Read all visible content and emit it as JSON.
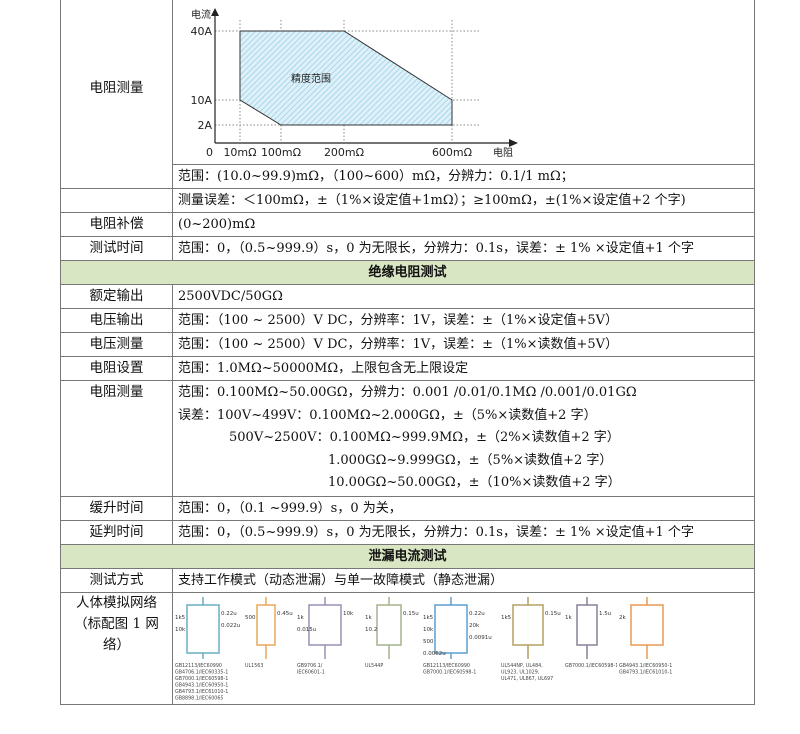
{
  "chart_data": {
    "type": "area",
    "title": "",
    "xlabel": "电阻",
    "ylabel": "电流",
    "origin_label": "0",
    "x_ticks": [
      "10mΩ",
      "100mΩ",
      "200mΩ",
      "600mΩ"
    ],
    "y_ticks": [
      "2A",
      "10A",
      "40A"
    ],
    "region_label": "精度范围",
    "region_polygon": [
      {
        "x": "10mΩ",
        "y": "40A"
      },
      {
        "x": "200mΩ",
        "y": "40A"
      },
      {
        "x": "600mΩ",
        "y": "10A"
      },
      {
        "x": "600mΩ",
        "y": "2A"
      },
      {
        "x": "100mΩ",
        "y": "2A"
      },
      {
        "x": "10mΩ",
        "y": "10A"
      }
    ],
    "grid": true,
    "fill_color": "#a8d8ec"
  },
  "rows": {
    "resistance_measure": {
      "label": "电阻测量",
      "range": "范围：(10.0~99.9)mΩ，（100~600）mΩ，分辨力：0.1/1 mΩ；",
      "error": "测量误差：＜100mΩ，±（1%×设定值+1mΩ）；≥100mΩ，±(1%×设定值+2 个字)"
    },
    "resistance_comp": {
      "label": "电阻补偿",
      "value": "(0~200)mΩ"
    },
    "test_time": {
      "label": "测试时间",
      "value": "范围：0，（0.5~999.9）s，0 为无限长，分辨力：0.1s，误差：± 1% ×设定值+1 个字"
    }
  },
  "insulation": {
    "header": "绝缘电阻测试",
    "rated_output": {
      "label": "额定输出",
      "value": "2500VDC/50GΩ"
    },
    "voltage_output": {
      "label": "电压输出",
      "value": "范围：（100 ~ 2500）V DC，分辨率：1V，误差：±（1%×设定值+5V）"
    },
    "voltage_measure": {
      "label": "电压测量",
      "value": "范围：（100 ~ 2500）V DC，分辨率：1V，误差：±（1%×读数值+5V）"
    },
    "resistance_setting": {
      "label": "电阻设置",
      "value": "范围：1.0MΩ~50000MΩ，上限包含无上限设定"
    },
    "resistance_measure": {
      "label": "电阻测量",
      "lines": [
        "范围：0.100MΩ~50.00GΩ，分辨力：0.001 /0.01/0.1MΩ /0.001/0.01GΩ",
        "误差：100V~499V：0.100MΩ~2.000GΩ，±（5%×读数值+2 字）",
        "500V~2500V：0.100MΩ~999.9MΩ，±（2%×读数值+2 字）",
        "1.000GΩ~9.999GΩ，±（5%×读数值+2 字）",
        "10.00GΩ~50.00GΩ，±（10%×读数值+2 字）"
      ]
    },
    "ramp_time": {
      "label": "缓升时间",
      "value": "范围：0，（0.1 ~999.9）s，0 为关，"
    },
    "judge_delay": {
      "label": "延判时间",
      "value": "范围：0，（0.5~999.9）s，0 为无限长，分辨力：0.1s，误差：± 1% ×设定值+1 个字"
    }
  },
  "leakage": {
    "header": "泄漏电流测试",
    "test_mode": {
      "label": "测试方式",
      "value": "支持工作模式（动态泄漏）与单一故障模式（静态泄漏）"
    },
    "body_network": {
      "label": "人体模拟网络（标配图 1 网络）",
      "networks": [
        {
          "color": "#6aaec2",
          "values": [
            "1k5",
            "0.22u",
            "10k",
            "0.022u"
          ],
          "standards": [
            "GB12113/IEC60990",
            "GB4706.1/IEC60335-1",
            "GB7000.1/IEC60598-1",
            "GB4943.1/IEC60950-1",
            "GB4793.1/IEC61010-1",
            "GB8898.1/IEC60065"
          ]
        },
        {
          "color": "#e8a75a",
          "values": [
            "500",
            "0.45u"
          ],
          "standards": [
            "UL1563"
          ]
        },
        {
          "color": "#9a8fb5",
          "values": [
            "1k",
            "10k",
            "0.015u"
          ],
          "standards": [
            "GB9706.1/",
            "IEC60601-1"
          ]
        },
        {
          "color": "#a3b38a",
          "values": [
            "1k",
            "0.15u",
            "10.2"
          ],
          "standards": [
            "UL544P"
          ]
        },
        {
          "color": "#5aa0d0",
          "values": [
            "1k5",
            "0.22u",
            "10k",
            "20k",
            "500",
            "0.0091u",
            "0.0062u"
          ],
          "standards": [
            "GB12113/IEC60990",
            "GB7000.1/IEC60598-1"
          ]
        },
        {
          "color": "#b3a060",
          "values": [
            "1k5",
            "0.15u"
          ],
          "standards": [
            "UL544NP, UL484,",
            "UL923, UL1029,",
            "UL471, UL867, UL697"
          ]
        },
        {
          "color": "#8a8098",
          "values": [
            "1k",
            "1.5u"
          ],
          "standards": [
            "GB7000.1/IEC60598-1"
          ]
        },
        {
          "color": "#e89a50",
          "values": [
            "2k"
          ],
          "standards": [
            "GB4943.1/IEC60950-1",
            "GB4793.1/IEC61010-1"
          ]
        }
      ]
    }
  }
}
